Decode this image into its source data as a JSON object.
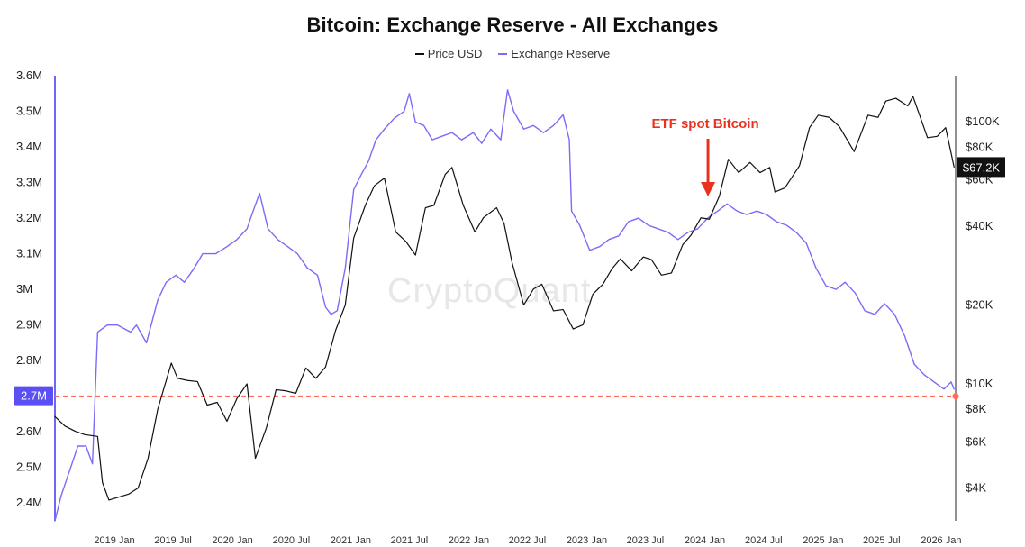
{
  "chart_data": {
    "type": "line",
    "title": "Bitcoin: Exchange Reserve - All Exchanges",
    "legend": [
      "Price USD",
      "Exchange Reserve"
    ],
    "legend_position": "top-center",
    "watermark": "CryptoQuant",
    "annotation": {
      "text": "ETF spot Bitcoin",
      "x": "2024-01-11",
      "color": "#e8321f"
    },
    "x_ticks": [
      "2019 Jan",
      "2019 Jul",
      "2020 Jan",
      "2020 Jul",
      "2021 Jan",
      "2021 Jul",
      "2022 Jan",
      "2022 Jul",
      "2023 Jan",
      "2023 Jul",
      "2024 Jan",
      "2024 Jul",
      "2025 Jan",
      "2025 Jul",
      "2026 Jan"
    ],
    "left_axis": {
      "label": "",
      "ticks": [
        "3.6M",
        "3.5M",
        "3.4M",
        "3.3M",
        "3.2M",
        "3.1M",
        "3M",
        "2.9M",
        "2.8M",
        "2.7M",
        "2.6M",
        "2.5M",
        "2.4M"
      ],
      "range": [
        2.35,
        3.6
      ],
      "unit": "M"
    },
    "right_axis": {
      "label": "",
      "scale": "log",
      "ticks": [
        "$100K",
        "$80K",
        "$60K",
        "$40K",
        "$20K",
        "$10K",
        "$8K",
        "$6K",
        "$4K"
      ],
      "tick_values": [
        100000,
        80000,
        60000,
        40000,
        20000,
        10000,
        8000,
        6000,
        4000
      ],
      "range": [
        3000,
        150000
      ]
    },
    "current_reserve_label": "2.7M",
    "current_price_label": "$67.2K",
    "reference_line": {
      "value": 2.7,
      "color": "#ff6a5a"
    },
    "series": [
      {
        "name": "Exchange Reserve",
        "axis": "left",
        "color": "#7a6cf6",
        "points": [
          [
            "2018-07-01",
            2.35
          ],
          [
            "2018-07-20",
            2.42
          ],
          [
            "2018-08-15",
            2.49
          ],
          [
            "2018-09-10",
            2.56
          ],
          [
            "2018-10-05",
            2.56
          ],
          [
            "2018-10-25",
            2.51
          ],
          [
            "2018-11-10",
            2.88
          ],
          [
            "2018-12-10",
            2.9
          ],
          [
            "2019-01-10",
            2.9
          ],
          [
            "2019-02-20",
            2.88
          ],
          [
            "2019-03-10",
            2.9
          ],
          [
            "2019-04-10",
            2.85
          ],
          [
            "2019-05-15",
            2.97
          ],
          [
            "2019-06-10",
            3.02
          ],
          [
            "2019-07-10",
            3.04
          ],
          [
            "2019-08-05",
            3.02
          ],
          [
            "2019-09-05",
            3.06
          ],
          [
            "2019-10-01",
            3.1
          ],
          [
            "2019-11-10",
            3.1
          ],
          [
            "2019-12-15",
            3.12
          ],
          [
            "2020-01-15",
            3.14
          ],
          [
            "2020-02-15",
            3.17
          ],
          [
            "2020-03-05",
            3.22
          ],
          [
            "2020-03-25",
            3.27
          ],
          [
            "2020-04-20",
            3.17
          ],
          [
            "2020-05-20",
            3.14
          ],
          [
            "2020-06-20",
            3.12
          ],
          [
            "2020-07-20",
            3.1
          ],
          [
            "2020-08-20",
            3.06
          ],
          [
            "2020-09-20",
            3.04
          ],
          [
            "2020-10-15",
            2.95
          ],
          [
            "2020-11-01",
            2.93
          ],
          [
            "2020-11-20",
            2.94
          ],
          [
            "2020-12-15",
            3.06
          ],
          [
            "2021-01-10",
            3.28
          ],
          [
            "2021-02-01",
            3.32
          ],
          [
            "2021-02-25",
            3.36
          ],
          [
            "2021-03-20",
            3.42
          ],
          [
            "2021-04-15",
            3.45
          ],
          [
            "2021-05-15",
            3.48
          ],
          [
            "2021-06-15",
            3.5
          ],
          [
            "2021-07-01",
            3.55
          ],
          [
            "2021-07-20",
            3.47
          ],
          [
            "2021-08-15",
            3.46
          ],
          [
            "2021-09-10",
            3.42
          ],
          [
            "2021-10-10",
            3.43
          ],
          [
            "2021-11-10",
            3.44
          ],
          [
            "2021-12-10",
            3.42
          ],
          [
            "2022-01-15",
            3.44
          ],
          [
            "2022-02-10",
            3.41
          ],
          [
            "2022-03-10",
            3.45
          ],
          [
            "2022-04-10",
            3.42
          ],
          [
            "2022-05-01",
            3.56
          ],
          [
            "2022-05-20",
            3.5
          ],
          [
            "2022-06-20",
            3.45
          ],
          [
            "2022-07-20",
            3.46
          ],
          [
            "2022-08-20",
            3.44
          ],
          [
            "2022-09-20",
            3.46
          ],
          [
            "2022-10-20",
            3.49
          ],
          [
            "2022-11-08",
            3.42
          ],
          [
            "2022-11-15",
            3.22
          ],
          [
            "2022-12-10",
            3.18
          ],
          [
            "2023-01-10",
            3.11
          ],
          [
            "2023-02-10",
            3.12
          ],
          [
            "2023-03-10",
            3.14
          ],
          [
            "2023-04-10",
            3.15
          ],
          [
            "2023-05-10",
            3.19
          ],
          [
            "2023-06-10",
            3.2
          ],
          [
            "2023-07-10",
            3.18
          ],
          [
            "2023-08-10",
            3.17
          ],
          [
            "2023-09-10",
            3.16
          ],
          [
            "2023-10-10",
            3.14
          ],
          [
            "2023-11-10",
            3.16
          ],
          [
            "2023-12-10",
            3.17
          ],
          [
            "2024-01-10",
            3.2
          ],
          [
            "2024-02-10",
            3.22
          ],
          [
            "2024-03-10",
            3.24
          ],
          [
            "2024-04-10",
            3.22
          ],
          [
            "2024-05-10",
            3.21
          ],
          [
            "2024-06-10",
            3.22
          ],
          [
            "2024-07-10",
            3.21
          ],
          [
            "2024-08-10",
            3.19
          ],
          [
            "2024-09-10",
            3.18
          ],
          [
            "2024-10-10",
            3.16
          ],
          [
            "2024-11-10",
            3.13
          ],
          [
            "2024-12-10",
            3.06
          ],
          [
            "2025-01-10",
            3.01
          ],
          [
            "2025-02-10",
            3.0
          ],
          [
            "2025-03-10",
            3.02
          ],
          [
            "2025-04-10",
            2.99
          ],
          [
            "2025-05-10",
            2.94
          ],
          [
            "2025-06-10",
            2.93
          ],
          [
            "2025-07-10",
            2.96
          ],
          [
            "2025-08-10",
            2.93
          ],
          [
            "2025-09-10",
            2.87
          ],
          [
            "2025-10-10",
            2.79
          ],
          [
            "2025-11-10",
            2.76
          ],
          [
            "2025-12-10",
            2.74
          ],
          [
            "2026-01-10",
            2.72
          ],
          [
            "2026-02-01",
            2.74
          ],
          [
            "2026-02-10",
            2.72
          ]
        ]
      },
      {
        "name": "Price USD",
        "axis": "right",
        "color": "#111111",
        "points": [
          [
            "2018-07-01",
            7500
          ],
          [
            "2018-08-01",
            6900
          ],
          [
            "2018-09-01",
            6600
          ],
          [
            "2018-10-01",
            6400
          ],
          [
            "2018-11-10",
            6300
          ],
          [
            "2018-11-25",
            4200
          ],
          [
            "2018-12-15",
            3600
          ],
          [
            "2019-01-15",
            3700
          ],
          [
            "2019-02-15",
            3800
          ],
          [
            "2019-03-15",
            4000
          ],
          [
            "2019-04-15",
            5200
          ],
          [
            "2019-05-15",
            8000
          ],
          [
            "2019-06-26",
            12000
          ],
          [
            "2019-07-15",
            10500
          ],
          [
            "2019-08-15",
            10300
          ],
          [
            "2019-09-15",
            10200
          ],
          [
            "2019-10-15",
            8300
          ],
          [
            "2019-11-15",
            8500
          ],
          [
            "2019-12-15",
            7200
          ],
          [
            "2020-01-15",
            8800
          ],
          [
            "2020-02-15",
            10000
          ],
          [
            "2020-03-12",
            5200
          ],
          [
            "2020-04-15",
            6800
          ],
          [
            "2020-05-15",
            9500
          ],
          [
            "2020-06-15",
            9400
          ],
          [
            "2020-07-15",
            9200
          ],
          [
            "2020-08-15",
            11500
          ],
          [
            "2020-09-15",
            10500
          ],
          [
            "2020-10-15",
            11600
          ],
          [
            "2020-11-15",
            16000
          ],
          [
            "2020-12-15",
            20000
          ],
          [
            "2021-01-10",
            36000
          ],
          [
            "2021-02-15",
            48000
          ],
          [
            "2021-03-15",
            57000
          ],
          [
            "2021-04-15",
            61000
          ],
          [
            "2021-05-20",
            38000
          ],
          [
            "2021-06-20",
            35000
          ],
          [
            "2021-07-20",
            31000
          ],
          [
            "2021-08-20",
            47000
          ],
          [
            "2021-09-15",
            48000
          ],
          [
            "2021-10-20",
            63000
          ],
          [
            "2021-11-10",
            67000
          ],
          [
            "2021-12-15",
            48000
          ],
          [
            "2022-01-20",
            38000
          ],
          [
            "2022-02-15",
            43000
          ],
          [
            "2022-03-28",
            47000
          ],
          [
            "2022-04-20",
            41000
          ],
          [
            "2022-05-15",
            29000
          ],
          [
            "2022-06-20",
            20000
          ],
          [
            "2022-07-20",
            23000
          ],
          [
            "2022-08-15",
            24000
          ],
          [
            "2022-09-20",
            19000
          ],
          [
            "2022-10-20",
            19200
          ],
          [
            "2022-11-20",
            16200
          ],
          [
            "2022-12-20",
            16800
          ],
          [
            "2023-01-20",
            22000
          ],
          [
            "2023-02-20",
            24000
          ],
          [
            "2023-03-20",
            27500
          ],
          [
            "2023-04-15",
            30000
          ],
          [
            "2023-05-20",
            27000
          ],
          [
            "2023-06-25",
            30500
          ],
          [
            "2023-07-20",
            29800
          ],
          [
            "2023-08-20",
            26000
          ],
          [
            "2023-09-20",
            26500
          ],
          [
            "2023-10-25",
            34000
          ],
          [
            "2023-11-20",
            37000
          ],
          [
            "2023-12-20",
            43000
          ],
          [
            "2024-01-15",
            42500
          ],
          [
            "2024-02-15",
            52000
          ],
          [
            "2024-03-14",
            72000
          ],
          [
            "2024-04-15",
            64000
          ],
          [
            "2024-05-20",
            70000
          ],
          [
            "2024-06-20",
            64000
          ],
          [
            "2024-07-20",
            67000
          ],
          [
            "2024-08-05",
            54000
          ],
          [
            "2024-09-05",
            56000
          ],
          [
            "2024-10-20",
            68000
          ],
          [
            "2024-11-20",
            95000
          ],
          [
            "2024-12-17",
            106000
          ],
          [
            "2025-01-20",
            104000
          ],
          [
            "2025-02-20",
            96000
          ],
          [
            "2025-04-07",
            77000
          ],
          [
            "2025-05-20",
            106000
          ],
          [
            "2025-06-20",
            104000
          ],
          [
            "2025-07-14",
            120000
          ],
          [
            "2025-08-14",
            123000
          ],
          [
            "2025-09-20",
            115000
          ],
          [
            "2025-10-06",
            125000
          ],
          [
            "2025-11-20",
            87000
          ],
          [
            "2025-12-20",
            88000
          ],
          [
            "2026-01-15",
            95000
          ],
          [
            "2026-02-01",
            76000
          ],
          [
            "2026-02-10",
            67200
          ]
        ]
      }
    ]
  }
}
